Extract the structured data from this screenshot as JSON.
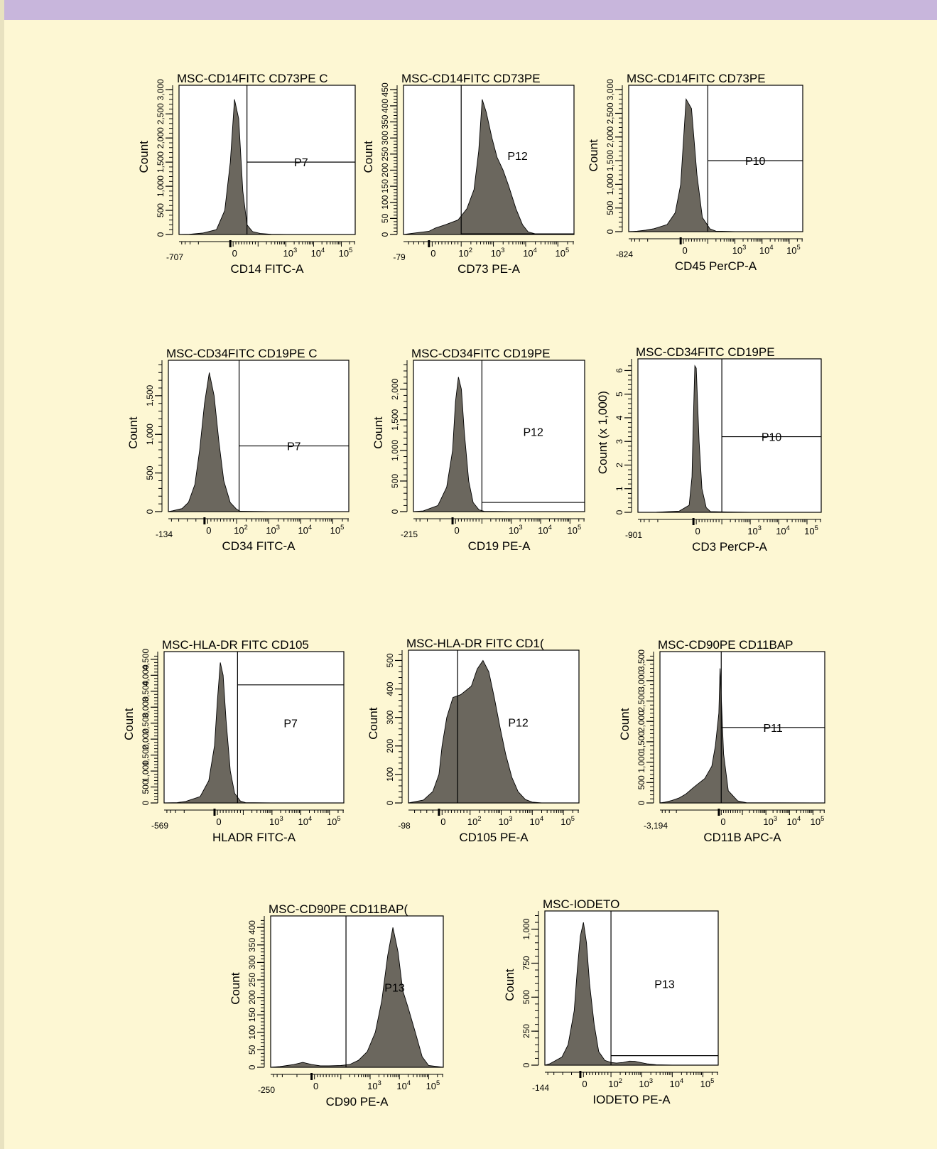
{
  "colors": {
    "background": "#fdf7d3",
    "header_bar": "#c8b6dc",
    "plot_bg": "#ffffff",
    "histogram_fill": "#6b675e"
  },
  "chart_data": [
    {
      "type": "area",
      "title": "MSC-CD14FITC CD73PE C",
      "xlabel": "CD14 FITC-A",
      "ylabel": "Count",
      "x_scale": "biexponential",
      "xlim": [
        -707,
        316228
      ],
      "x_ticks": [
        -707,
        0,
        1000,
        10000,
        100000
      ],
      "x_tick_labels": [
        "-707",
        "0",
        "10^3",
        "10^4",
        "10^5"
      ],
      "ylim": [
        0,
        3000
      ],
      "y_ticks": [
        0,
        500,
        1000,
        1500,
        2000,
        2500,
        3000
      ],
      "y_tick_labels": [
        "0",
        "500",
        "1,000",
        "1,500",
        "2,000",
        "2,500",
        "3,000"
      ],
      "gate": {
        "name": "P7",
        "x_start": 60,
        "count_level": 1500
      },
      "histogram": {
        "x": [
          -707,
          -300,
          -100,
          -50,
          -20,
          0,
          15,
          30,
          45,
          60,
          80,
          120,
          300,
          1000,
          100000,
          316228
        ],
        "y": [
          0,
          5,
          30,
          100,
          500,
          1500,
          2800,
          2400,
          900,
          200,
          60,
          20,
          5,
          2,
          0,
          0
        ]
      }
    },
    {
      "type": "area",
      "title": "MSC-CD14FITC CD73PE",
      "xlabel": "CD73 PE-A",
      "ylabel": "Count",
      "x_scale": "biexponential",
      "xlim": [
        -79,
        316228
      ],
      "x_ticks": [
        -79,
        0,
        100,
        1000,
        10000,
        100000
      ],
      "x_tick_labels": [
        "-79",
        "0",
        "10^2",
        "10^3",
        "10^4",
        "10^5"
      ],
      "ylim": [
        0,
        450
      ],
      "y_ticks": [
        0,
        50,
        100,
        150,
        200,
        250,
        300,
        350,
        400,
        450
      ],
      "y_tick_labels": [
        "0",
        "50",
        "100",
        "150",
        "200",
        "250",
        "300",
        "350",
        "400",
        "450"
      ],
      "gate": {
        "name": "P12",
        "x_start": 100,
        "count_level": 2
      },
      "histogram": {
        "x": [
          -79,
          -40,
          0,
          20,
          50,
          90,
          150,
          250,
          350,
          450,
          600,
          900,
          1300,
          2000,
          3000,
          5000,
          8000,
          12000,
          20000,
          316228
        ],
        "y": [
          0,
          5,
          10,
          20,
          30,
          45,
          80,
          140,
          260,
          420,
          380,
          300,
          240,
          200,
          150,
          80,
          30,
          8,
          2,
          0
        ]
      }
    },
    {
      "type": "area",
      "title": "MSC-CD14FITC CD73PE",
      "xlabel": "CD45 PerCP-A",
      "ylabel": "Count",
      "x_scale": "biexponential",
      "xlim": [
        -824,
        316228
      ],
      "x_ticks": [
        -824,
        0,
        1000,
        10000,
        100000
      ],
      "x_tick_labels": [
        "-824",
        "0",
        "10^3",
        "10^4",
        "10^5"
      ],
      "ylim": [
        0,
        3000
      ],
      "y_ticks": [
        0,
        500,
        1000,
        1500,
        2000,
        2500,
        3000
      ],
      "y_tick_labels": [
        "0",
        "500",
        "1,000",
        "1,500",
        "2,000",
        "2,500",
        "3,000"
      ],
      "gate": {
        "name": "P10",
        "x_start": 100,
        "count_level": 1500
      },
      "histogram": {
        "x": [
          -824,
          -400,
          -200,
          -100,
          -50,
          -20,
          0,
          20,
          40,
          60,
          80,
          120,
          200,
          1000,
          100000,
          316228
        ],
        "y": [
          0,
          10,
          30,
          60,
          150,
          400,
          1000,
          2800,
          2600,
          1200,
          300,
          60,
          10,
          2,
          0,
          0
        ]
      }
    },
    {
      "type": "area",
      "title": "MSC-CD34FITC CD19PE C",
      "xlabel": "CD34 FITC-A",
      "ylabel": "Count",
      "x_scale": "biexponential",
      "xlim": [
        -134,
        316228
      ],
      "x_ticks": [
        -134,
        0,
        100,
        1000,
        10000,
        100000
      ],
      "x_tick_labels": [
        "-134",
        "0",
        "10^2",
        "10^3",
        "10^4",
        "10^5"
      ],
      "ylim": [
        0,
        1900
      ],
      "y_ticks": [
        0,
        500,
        1000,
        1500
      ],
      "y_tick_labels": [
        "0",
        "500",
        "1,000",
        "1,500"
      ],
      "gate": {
        "name": "P7",
        "x_start": 120,
        "count_level": 850
      },
      "histogram": {
        "x": [
          -134,
          -100,
          -70,
          -50,
          -30,
          -15,
          0,
          15,
          30,
          45,
          60,
          80,
          100,
          130,
          1000,
          316228
        ],
        "y": [
          0,
          10,
          40,
          120,
          350,
          800,
          1400,
          1800,
          1500,
          900,
          400,
          120,
          30,
          5,
          0,
          0
        ]
      }
    },
    {
      "type": "area",
      "title": "MSC-CD34FITC CD19PE",
      "xlabel": "CD19 PE-A",
      "ylabel": "Count",
      "x_scale": "biexponential",
      "xlim": [
        -215,
        316228
      ],
      "x_ticks": [
        -215,
        0,
        1000,
        10000,
        100000
      ],
      "x_tick_labels": [
        "-215",
        "0",
        "10^3",
        "10^4",
        "10^5"
      ],
      "ylim": [
        0,
        2400
      ],
      "y_ticks": [
        0,
        500,
        1000,
        1500,
        2000
      ],
      "y_tick_labels": [
        "0",
        "500",
        "1,000",
        "1,500",
        "2,000"
      ],
      "gate": {
        "name": "P12",
        "x_start": 100,
        "count_level": 150
      },
      "histogram": {
        "x": [
          -215,
          -100,
          -50,
          -20,
          0,
          10,
          20,
          30,
          40,
          55,
          70,
          90,
          120,
          1000,
          316228
        ],
        "y": [
          0,
          10,
          100,
          400,
          1000,
          1800,
          2200,
          2000,
          1300,
          500,
          150,
          30,
          5,
          0,
          0
        ]
      }
    },
    {
      "type": "area",
      "title": "MSC-CD34FITC CD19PE",
      "xlabel": "CD3 PerCP-A",
      "ylabel": "Count  (x 1,000)",
      "x_scale": "biexponential",
      "xlim": [
        -901,
        316228
      ],
      "x_ticks": [
        -901,
        0,
        1000,
        10000,
        100000
      ],
      "x_tick_labels": [
        "-901",
        "0",
        "10^3",
        "10^4",
        "10^5"
      ],
      "ylim": [
        0,
        6.3
      ],
      "y_ticks": [
        0,
        1,
        2,
        3,
        4,
        5,
        6
      ],
      "y_tick_labels": [
        "0",
        "1",
        "2",
        "3",
        "4",
        "5",
        "6"
      ],
      "gate": {
        "name": "P10",
        "x_start": 100,
        "count_level": 3.2
      },
      "histogram": {
        "x": [
          -901,
          -200,
          -50,
          -15,
          -5,
          0,
          5,
          10,
          20,
          30,
          45,
          60,
          1000,
          316228
        ],
        "y": [
          0,
          0.005,
          0.05,
          0.3,
          1.5,
          4,
          6.2,
          6.1,
          3,
          1,
          0.2,
          0.03,
          0,
          0
        ]
      }
    },
    {
      "type": "area",
      "title": "MSC-HLA-DR FITC CD105",
      "xlabel": "HLADR FITC-A",
      "ylabel": "Count",
      "x_scale": "biexponential",
      "xlim": [
        -569,
        316228
      ],
      "x_ticks": [
        -569,
        0,
        1000,
        10000,
        100000
      ],
      "x_tick_labels": [
        "-569",
        "0",
        "10^3",
        "10^4",
        "10^5"
      ],
      "ylim": [
        0,
        4600
      ],
      "y_ticks": [
        0,
        500,
        1000,
        1500,
        2000,
        2500,
        3000,
        3500,
        4000,
        4500
      ],
      "y_tick_labels": [
        "0",
        "500",
        "1,000",
        "1,500",
        "2,000",
        "2,500",
        "3,000",
        "3,500",
        "4,000",
        "4,500"
      ],
      "gate": {
        "name": "P7",
        "x_start": 80,
        "count_level": 3700
      },
      "histogram": {
        "x": [
          -569,
          -200,
          -100,
          -50,
          -20,
          0,
          10,
          20,
          30,
          40,
          55,
          70,
          90,
          120,
          1000,
          316228
        ],
        "y": [
          0,
          10,
          50,
          200,
          700,
          1800,
          3200,
          4400,
          4000,
          2600,
          1000,
          300,
          60,
          10,
          0,
          0
        ]
      }
    },
    {
      "type": "area",
      "title": "MSC-HLA-DR FITC CD1(",
      "xlabel": "CD105 PE-A",
      "ylabel": "Count",
      "x_scale": "biexponential",
      "xlim": [
        -98,
        316228
      ],
      "x_ticks": [
        -98,
        0,
        100,
        1000,
        10000,
        100000
      ],
      "x_tick_labels": [
        "-98",
        "0",
        "10^2",
        "10^3",
        "10^4",
        "10^5"
      ],
      "ylim": [
        0,
        520
      ],
      "y_ticks": [
        0,
        100,
        200,
        300,
        400,
        500
      ],
      "y_tick_labels": [
        "0",
        "100",
        "200",
        "300",
        "400",
        "500"
      ],
      "gate": {
        "name": "P12",
        "x_start": 60,
        "count_level": 0
      },
      "histogram": {
        "x": [
          -98,
          -50,
          -20,
          0,
          10,
          25,
          45,
          70,
          110,
          170,
          260,
          400,
          600,
          900,
          1400,
          2200,
          3500,
          6000,
          10000,
          20000,
          316228
        ],
        "y": [
          0,
          10,
          40,
          100,
          200,
          300,
          370,
          380,
          410,
          470,
          500,
          460,
          370,
          270,
          170,
          90,
          40,
          12,
          3,
          0,
          0
        ]
      }
    },
    {
      "type": "area",
      "title": "MSC-CD90PE CD11BAP",
      "xlabel": "CD11B APC-A",
      "ylabel": "Count",
      "x_scale": "biexponential",
      "xlim": [
        -3194,
        316228
      ],
      "x_ticks": [
        -3194,
        0,
        1000,
        10000,
        100000
      ],
      "x_tick_labels": [
        "-3,194",
        "0",
        "10^3",
        "10^4",
        "10^5"
      ],
      "ylim": [
        0,
        3600
      ],
      "y_ticks": [
        0,
        500,
        1000,
        1500,
        2000,
        2500,
        3000,
        3500
      ],
      "y_tick_labels": [
        "0",
        "500",
        "1,000",
        "1,500",
        "2,000",
        "2,500",
        "3,000",
        "3,500"
      ],
      "gate": {
        "name": "P11",
        "x_start": 10,
        "count_level": 1850
      },
      "histogram": {
        "x": [
          -3194,
          -2000,
          -1000,
          -500,
          -250,
          -120,
          -60,
          -30,
          -15,
          0,
          5,
          10,
          20,
          40,
          80,
          150,
          316228
        ],
        "y": [
          0,
          20,
          60,
          120,
          220,
          380,
          600,
          900,
          1400,
          2200,
          3300,
          2600,
          1200,
          300,
          50,
          5,
          0
        ]
      }
    },
    {
      "type": "area",
      "title": "MSC-CD90PE CD11BAP(",
      "xlabel": "CD90 PE-A",
      "ylabel": "Count",
      "x_scale": "biexponential",
      "xlim": [
        -250,
        316228
      ],
      "x_ticks": [
        -250,
        0,
        1000,
        10000,
        100000
      ],
      "x_tick_labels": [
        "-250",
        "0",
        "10^3",
        "10^4",
        "10^5"
      ],
      "ylim": [
        0,
        420
      ],
      "y_ticks": [
        0,
        50,
        100,
        150,
        200,
        250,
        300,
        350,
        400
      ],
      "y_tick_labels": [
        "0",
        "50",
        "100",
        "150",
        "200",
        "250",
        "300",
        "350",
        "400"
      ],
      "gate": {
        "name": "P13",
        "x_start": 150,
        "count_level": 0
      },
      "histogram": {
        "x": [
          -250,
          -120,
          -60,
          -30,
          0,
          30,
          60,
          100,
          200,
          400,
          800,
          1500,
          2500,
          4000,
          6000,
          9000,
          13000,
          20000,
          35000,
          60000,
          100000,
          316228
        ],
        "y": [
          0,
          2,
          8,
          14,
          8,
          4,
          4,
          5,
          8,
          20,
          45,
          100,
          190,
          320,
          400,
          330,
          220,
          170,
          100,
          30,
          5,
          0
        ]
      }
    },
    {
      "type": "area",
      "title": "MSC-IODETO",
      "xlabel": "IODETO PE-A",
      "ylabel": "Count",
      "x_scale": "biexponential",
      "xlim": [
        -144,
        316228
      ],
      "x_ticks": [
        -144,
        0,
        100,
        1000,
        10000,
        100000
      ],
      "x_tick_labels": [
        "-144",
        "0",
        "10^2",
        "10^3",
        "10^4",
        "10^5"
      ],
      "ylim": [
        0,
        1100
      ],
      "y_ticks": [
        0,
        250,
        500,
        750,
        1000
      ],
      "y_tick_labels": [
        "0",
        "250",
        "500",
        "750",
        "1,000"
      ],
      "gate": {
        "name": "P13",
        "x_start": 100,
        "count_level": 70
      },
      "histogram": {
        "x": [
          -144,
          -100,
          -60,
          -40,
          -20,
          -10,
          0,
          10,
          20,
          30,
          45,
          60,
          80,
          100,
          150,
          250,
          400,
          600,
          900,
          1500,
          3000,
          10000,
          316228
        ],
        "y": [
          0,
          10,
          60,
          150,
          400,
          700,
          950,
          1050,
          900,
          600,
          300,
          100,
          35,
          20,
          15,
          20,
          30,
          28,
          20,
          10,
          3,
          0,
          0
        ]
      }
    }
  ]
}
